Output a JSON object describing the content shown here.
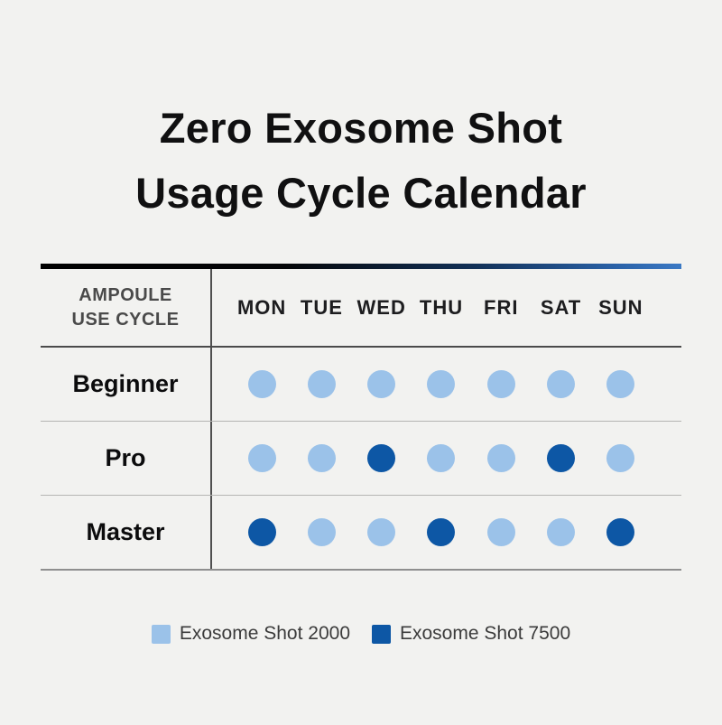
{
  "title": {
    "line1": "Zero Exosome Shot",
    "line2": "Usage Cycle Calendar"
  },
  "table": {
    "corner_label_line1": "AMPOULE",
    "corner_label_line2": "USE CYCLE",
    "days": [
      "MON",
      "TUE",
      "WED",
      "THU",
      "FRI",
      "SAT",
      "SUN"
    ],
    "rows": [
      {
        "label": "Beginner",
        "dots": [
          "light",
          "light",
          "light",
          "light",
          "light",
          "light",
          "light"
        ]
      },
      {
        "label": "Pro",
        "dots": [
          "light",
          "light",
          "dark",
          "light",
          "light",
          "dark",
          "light"
        ]
      },
      {
        "label": "Master",
        "dots": [
          "dark",
          "light",
          "light",
          "dark",
          "light",
          "light",
          "dark"
        ]
      }
    ]
  },
  "legend": [
    {
      "type": "light",
      "label": "Exosome Shot 2000",
      "color": "#9bc2e9"
    },
    {
      "type": "dark",
      "label": "Exosome Shot 7500",
      "color": "#0d57a5"
    }
  ],
  "colors": {
    "background": "#f2f2f0",
    "light_dot": "#9bc2e9",
    "dark_dot": "#0d57a5",
    "accent_line_left": "#000000",
    "accent_line_right": "#3b79c4"
  },
  "chart_data": {
    "type": "table",
    "title": "Zero Exosome Shot Usage Cycle Calendar",
    "columns": [
      "AMPOULE USE CYCLE",
      "MON",
      "TUE",
      "WED",
      "THU",
      "FRI",
      "SAT",
      "SUN"
    ],
    "rows": [
      {
        "cycle": "Beginner",
        "values": [
          "Exosome Shot 2000",
          "Exosome Shot 2000",
          "Exosome Shot 2000",
          "Exosome Shot 2000",
          "Exosome Shot 2000",
          "Exosome Shot 2000",
          "Exosome Shot 2000"
        ]
      },
      {
        "cycle": "Pro",
        "values": [
          "Exosome Shot 2000",
          "Exosome Shot 2000",
          "Exosome Shot 7500",
          "Exosome Shot 2000",
          "Exosome Shot 2000",
          "Exosome Shot 7500",
          "Exosome Shot 2000"
        ]
      },
      {
        "cycle": "Master",
        "values": [
          "Exosome Shot 7500",
          "Exosome Shot 2000",
          "Exosome Shot 2000",
          "Exosome Shot 7500",
          "Exosome Shot 2000",
          "Exosome Shot 2000",
          "Exosome Shot 7500"
        ]
      }
    ],
    "legend": [
      {
        "label": "Exosome Shot 2000",
        "color": "#9bc2e9"
      },
      {
        "label": "Exosome Shot 7500",
        "color": "#0d57a5"
      }
    ],
    "legend_position": "bottom",
    "grid": "horizontal-rules"
  }
}
